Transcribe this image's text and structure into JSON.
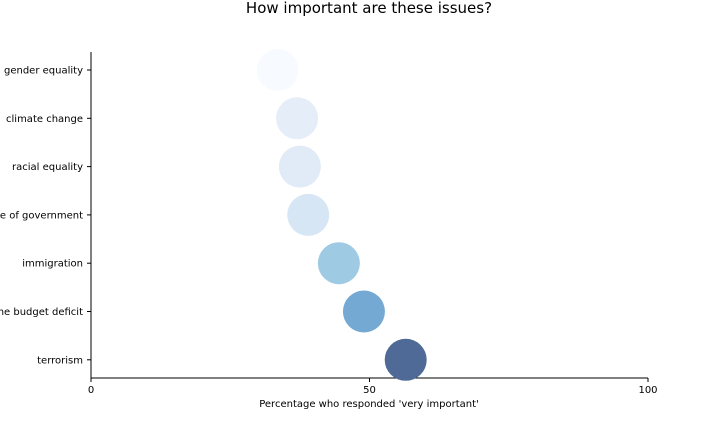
{
  "chart_data": {
    "type": "scatter",
    "title": "How important are these issues?",
    "xlabel": "Percentage who responded 'very important'",
    "ylabel": "",
    "xlim": [
      0,
      100
    ],
    "xticks": [
      0,
      50,
      100
    ],
    "grid": false,
    "categories": [
      "gender equality",
      "climate change",
      "racial equality",
      "size of government",
      "immigration",
      "the budget deficit",
      "terrorism"
    ],
    "values": [
      33.5,
      37.0,
      37.5,
      39.0,
      44.5,
      49.0,
      56.5
    ],
    "colors": [
      "#f7fbff",
      "#e5edf8",
      "#e1ebf7",
      "#d7e6f4",
      "#9fcae4",
      "#74a9d4",
      "#4f6a97"
    ]
  }
}
